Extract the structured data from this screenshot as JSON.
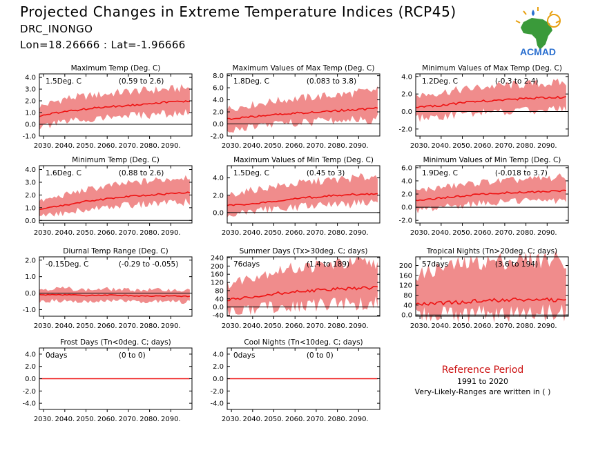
{
  "header": {
    "title": "Projected Changes in Extreme Temperature Indices (RCP45)",
    "station": "DRC_INONGO",
    "coords": "Lon=18.26666 : Lat=-1.96666",
    "logo_text": "ACMAD"
  },
  "reference": {
    "title": "Reference Period",
    "years": "1991 to 2020",
    "note": "Very-Likely-Ranges are written in ( )"
  },
  "colors": {
    "band": "#f08c8c",
    "line": "#ee1111",
    "reference_title": "#cc1111"
  },
  "chart_data": [
    {
      "type": "line",
      "title": "Maximum Temp (Deg. C)",
      "change": "1.5Deg. C",
      "range": "(0.59 to 2.6)",
      "x_ticks": [
        "2030.",
        "2040.",
        "2050.",
        "2060.",
        "2070.",
        "2080.",
        "2090."
      ],
      "y_ticks": [
        "-1.0",
        "0.0",
        "1.0",
        "2.0",
        "3.0",
        "4.0"
      ],
      "xlim": [
        2028,
        2100
      ],
      "ylim": [
        -1,
        4.3
      ],
      "series": [
        {
          "x": [
            2028,
            2040,
            2050,
            2060,
            2070,
            2080,
            2090,
            2099
          ],
          "values": [
            0.7,
            1.1,
            1.3,
            1.5,
            1.6,
            1.8,
            1.9,
            2.0
          ],
          "low": [
            -0.3,
            0.2,
            0.4,
            0.6,
            0.7,
            0.8,
            0.9,
            1.0
          ],
          "high": [
            1.5,
            2.2,
            2.4,
            2.6,
            2.8,
            2.9,
            3.0,
            3.1
          ]
        }
      ]
    },
    {
      "type": "line",
      "title": "Maximum Values of Max Temp (Deg. C)",
      "change": "1.8Deg. C",
      "range": "(0.083 to 3.8)",
      "x_ticks": [
        "2030.",
        "2040.",
        "2050.",
        "2060.",
        "2070.",
        "2080.",
        "2090."
      ],
      "y_ticks": [
        "-2.0",
        "0.0",
        "2.0",
        "4.0",
        "6.0",
        "8.0"
      ],
      "xlim": [
        2028,
        2100
      ],
      "ylim": [
        -2,
        8.3
      ],
      "series": [
        {
          "x": [
            2028,
            2040,
            2050,
            2060,
            2070,
            2080,
            2090,
            2099
          ],
          "values": [
            0.8,
            1.2,
            1.5,
            1.8,
            2.0,
            2.2,
            2.4,
            2.6
          ],
          "low": [
            -1.0,
            -0.5,
            0.0,
            0.2,
            0.4,
            0.6,
            0.7,
            0.8
          ],
          "high": [
            2.5,
            3.2,
            3.8,
            4.2,
            4.5,
            4.8,
            5.2,
            5.6
          ]
        }
      ]
    },
    {
      "type": "line",
      "title": "Minimum Values of Max Temp (Deg. C)",
      "change": "1.2Deg. C",
      "range": "(-0.3 to 2.4)",
      "x_ticks": [
        "2030.",
        "2040.",
        "2050.",
        "2060.",
        "2070.",
        "2080.",
        "2090."
      ],
      "y_ticks": [
        "-2.0",
        "0.0",
        "2.0",
        "4.0"
      ],
      "xlim": [
        2028,
        2100
      ],
      "ylim": [
        -2.8,
        4.3
      ],
      "series": [
        {
          "x": [
            2028,
            2040,
            2050,
            2060,
            2070,
            2080,
            2090,
            2099
          ],
          "values": [
            0.5,
            0.7,
            1.0,
            1.2,
            1.3,
            1.5,
            1.6,
            1.6
          ],
          "low": [
            -0.8,
            -0.6,
            -0.3,
            -0.1,
            0.0,
            0.1,
            0.2,
            0.3
          ],
          "high": [
            1.8,
            2.2,
            2.5,
            2.8,
            3.0,
            3.1,
            3.2,
            3.3
          ]
        }
      ]
    },
    {
      "type": "line",
      "title": "Minimum Temp (Deg. C)",
      "change": "1.6Deg. C",
      "range": "(0.88 to 2.6)",
      "x_ticks": [
        "2030.",
        "2040.",
        "2050.",
        "2060.",
        "2070.",
        "2080.",
        "2090."
      ],
      "y_ticks": [
        "0.0",
        "1.0",
        "2.0",
        "3.0",
        "4.0"
      ],
      "xlim": [
        2028,
        2100
      ],
      "ylim": [
        -0.2,
        4.3
      ],
      "series": [
        {
          "x": [
            2028,
            2040,
            2050,
            2060,
            2070,
            2080,
            2090,
            2099
          ],
          "values": [
            0.9,
            1.2,
            1.5,
            1.7,
            1.9,
            2.0,
            2.1,
            2.2
          ],
          "low": [
            0.4,
            0.6,
            0.9,
            1.1,
            1.2,
            1.3,
            1.4,
            1.5
          ],
          "high": [
            1.5,
            2.0,
            2.4,
            2.7,
            2.9,
            3.1,
            3.3,
            3.5
          ]
        }
      ]
    },
    {
      "type": "line",
      "title": "Maximum Values of Min Temp (Deg. C)",
      "change": "1.5Deg. C",
      "range": "(0.45 to 3)",
      "x_ticks": [
        "2030.",
        "2040.",
        "2050.",
        "2060.",
        "2070.",
        "2080.",
        "2090."
      ],
      "y_ticks": [
        "0.0",
        "2.0",
        "4.0"
      ],
      "xlim": [
        2028,
        2100
      ],
      "ylim": [
        -1.2,
        5.4
      ],
      "series": [
        {
          "x": [
            2028,
            2040,
            2050,
            2060,
            2070,
            2080,
            2090,
            2099
          ],
          "values": [
            0.8,
            1.0,
            1.3,
            1.6,
            1.8,
            2.0,
            2.1,
            2.2
          ],
          "low": [
            -0.2,
            0.2,
            0.4,
            0.6,
            0.8,
            0.9,
            1.0,
            1.1
          ],
          "high": [
            2.0,
            2.6,
            3.0,
            3.3,
            3.6,
            3.8,
            4.0,
            4.2
          ]
        }
      ]
    },
    {
      "type": "line",
      "title": "Minimum Values of Min Temp (Deg. C)",
      "change": "1.9Deg. C",
      "range": "(-0.018 to 3.7)",
      "x_ticks": [
        "2030.",
        "2040.",
        "2050.",
        "2060.",
        "2070.",
        "2080.",
        "2090."
      ],
      "y_ticks": [
        "-2.0",
        "0.0",
        "2.0",
        "4.0",
        "6.0"
      ],
      "xlim": [
        2028,
        2100
      ],
      "ylim": [
        -2.4,
        6.3
      ],
      "series": [
        {
          "x": [
            2028,
            2040,
            2050,
            2060,
            2070,
            2080,
            2090,
            2099
          ],
          "values": [
            1.0,
            1.4,
            1.7,
            2.0,
            2.2,
            2.3,
            2.4,
            2.5
          ],
          "low": [
            -0.5,
            0.0,
            0.3,
            0.6,
            0.8,
            0.9,
            1.0,
            1.1
          ],
          "high": [
            2.5,
            3.0,
            3.4,
            3.8,
            4.0,
            4.2,
            4.4,
            4.6
          ]
        }
      ]
    },
    {
      "type": "line",
      "title": "Diurnal Temp Range (Deg. C)",
      "change": "-0.15Deg. C",
      "range": "(-0.29 to -0.055)",
      "x_ticks": [
        "2030.",
        "2040.",
        "2050.",
        "2060.",
        "2070.",
        "2080.",
        "2090."
      ],
      "y_ticks": [
        "-1.0",
        "0.0",
        "1.0",
        "2.0"
      ],
      "xlim": [
        2028,
        2100
      ],
      "ylim": [
        -1.4,
        2.2
      ],
      "series": [
        {
          "x": [
            2028,
            2040,
            2050,
            2060,
            2070,
            2080,
            2090,
            2099
          ],
          "values": [
            -0.1,
            -0.1,
            -0.15,
            -0.12,
            -0.15,
            -0.18,
            -0.16,
            -0.2
          ],
          "low": [
            -0.5,
            -0.45,
            -0.5,
            -0.45,
            -0.5,
            -0.5,
            -0.5,
            -0.55
          ],
          "high": [
            0.25,
            0.3,
            0.2,
            0.25,
            0.2,
            0.2,
            0.2,
            0.15
          ]
        }
      ]
    },
    {
      "type": "line",
      "title": "Summer Days (Tx>30deg. C; days)",
      "change": "76days",
      "range": "(1.4 to 189)",
      "x_ticks": [
        "2030.",
        "2040.",
        "2050.",
        "2060.",
        "2070.",
        "2080.",
        "2090."
      ],
      "y_ticks": [
        "-40",
        "0.0",
        "40",
        "80",
        "120",
        "160",
        "200",
        "240"
      ],
      "xlim": [
        2028,
        2100
      ],
      "ylim": [
        -45,
        245
      ],
      "series": [
        {
          "x": [
            2028,
            2040,
            2050,
            2060,
            2070,
            2080,
            2090,
            2099
          ],
          "values": [
            35,
            50,
            65,
            75,
            82,
            88,
            93,
            96
          ],
          "low": [
            -25,
            -10,
            0,
            5,
            10,
            15,
            15,
            20
          ],
          "high": [
            110,
            150,
            175,
            190,
            200,
            210,
            215,
            220
          ]
        }
      ]
    },
    {
      "type": "line",
      "title": "Tropical Nights (Tn>20deg. C; days)",
      "change": "57days",
      "range": "(3.6 to 194)",
      "x_ticks": [
        "2030.",
        "2040.",
        "2050.",
        "2060.",
        "2070.",
        "2080.",
        "2090."
      ],
      "y_ticks": [
        "0.0",
        "40",
        "80",
        "120",
        "160",
        "200"
      ],
      "xlim": [
        2028,
        2100
      ],
      "ylim": [
        -5,
        235
      ],
      "series": [
        {
          "x": [
            2028,
            2040,
            2050,
            2060,
            2070,
            2080,
            2090,
            2099
          ],
          "values": [
            42,
            48,
            53,
            58,
            60,
            62,
            62,
            63
          ],
          "low": [
            5,
            5,
            5,
            5,
            5,
            5,
            5,
            5
          ],
          "high": [
            160,
            190,
            205,
            215,
            220,
            222,
            225,
            225
          ]
        }
      ]
    },
    {
      "type": "line",
      "title": "Frost Days (Tn<0deg. C; days)",
      "change": "0days",
      "range": "(0 to 0)",
      "x_ticks": [
        "2030.",
        "2040.",
        "2050.",
        "2060.",
        "2070.",
        "2080.",
        "2090."
      ],
      "y_ticks": [
        "-4.0",
        "-2.0",
        "0.0",
        "2.0",
        "4.0"
      ],
      "xlim": [
        2028,
        2100
      ],
      "ylim": [
        -5,
        5
      ],
      "series": [
        {
          "x": [
            2028,
            2099
          ],
          "values": [
            0,
            0
          ],
          "low": [
            0,
            0
          ],
          "high": [
            0,
            0
          ]
        }
      ]
    },
    {
      "type": "line",
      "title": "Cool Nights (Tn<10deg. C; days)",
      "change": "0days",
      "range": "(0 to 0)",
      "x_ticks": [
        "2030.",
        "2040.",
        "2050.",
        "2060.",
        "2070.",
        "2080.",
        "2090."
      ],
      "y_ticks": [
        "-4.0",
        "-2.0",
        "0.0",
        "2.0",
        "4.0"
      ],
      "xlim": [
        2028,
        2100
      ],
      "ylim": [
        -5,
        5
      ],
      "series": [
        {
          "x": [
            2028,
            2099
          ],
          "values": [
            0,
            0
          ],
          "low": [
            0,
            0
          ],
          "high": [
            0,
            0
          ]
        }
      ]
    }
  ]
}
